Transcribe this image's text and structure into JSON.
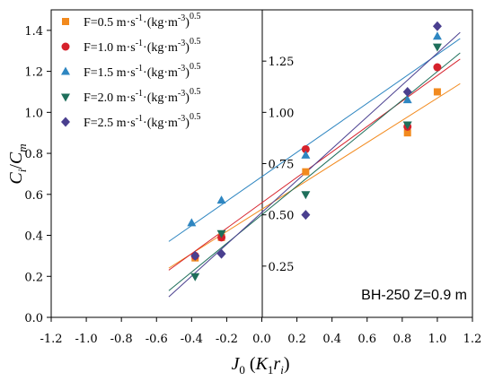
{
  "chart_data": {
    "type": "scatter",
    "xlabel": "J0 (K1 ri)",
    "ylabel": "Ci/Cm",
    "xlim": [
      -1.2,
      1.2
    ],
    "ylim": [
      0,
      1.5
    ],
    "inner_ylim": [
      0,
      1.5
    ],
    "x_ticks": [
      "-1.2",
      "-1.0",
      "-0.8",
      "-0.6",
      "-0.4",
      "-0.2",
      "0.0",
      "0.2",
      "0.4",
      "0.6",
      "0.8",
      "1.0",
      "1.2"
    ],
    "y_ticks": [
      "0.0",
      "0.2",
      "0.4",
      "0.6",
      "0.8",
      "1.0",
      "1.2",
      "1.4"
    ],
    "inner_y_ticks": [
      "0.25",
      "0.50",
      "0.75",
      "1.00",
      "1.25"
    ],
    "annotation": "BH-250  Z=0.9 m",
    "legend_position": "top-left",
    "grid": false,
    "series": [
      {
        "name": "F=0.5 m·s⁻¹·(kg·m⁻³)^0.5",
        "color": "#f28a1e",
        "marker": "square",
        "x": [
          -0.38,
          -0.23,
          0.25,
          0.83,
          1.0
        ],
        "y": [
          0.29,
          0.39,
          0.71,
          0.9,
          1.1
        ],
        "fit": [
          -0.53,
          0.24,
          1.13,
          1.14
        ]
      },
      {
        "name": "F=1.0 m·s⁻¹·(kg·m⁻³)^0.5",
        "color": "#d6212b",
        "marker": "circle",
        "x": [
          -0.38,
          -0.23,
          0.25,
          0.83,
          1.0
        ],
        "y": [
          0.3,
          0.39,
          0.82,
          0.93,
          1.22
        ],
        "fit": [
          -0.53,
          0.23,
          1.13,
          1.26
        ]
      },
      {
        "name": "F=1.5 m·s⁻¹·(kg·m⁻³)^0.5",
        "color": "#2e86c1",
        "marker": "triangle-up",
        "x": [
          -0.4,
          -0.23,
          0.25,
          0.83,
          1.0
        ],
        "y": [
          0.46,
          0.57,
          0.79,
          1.06,
          1.37
        ],
        "fit": [
          -0.53,
          0.37,
          1.13,
          1.36
        ]
      },
      {
        "name": "F=2.0 m·s⁻¹·(kg·m⁻³)^0.5",
        "color": "#1f6f5b",
        "marker": "triangle-down",
        "x": [
          -0.38,
          -0.23,
          0.25,
          0.83,
          1.0
        ],
        "y": [
          0.2,
          0.41,
          0.6,
          0.94,
          1.32
        ],
        "fit": [
          -0.53,
          0.13,
          1.13,
          1.29
        ]
      },
      {
        "name": "F=2.5 m·s⁻¹·(kg·m⁻³)^0.5",
        "color": "#4a3f8f",
        "marker": "diamond",
        "x": [
          -0.38,
          -0.23,
          0.25,
          0.83,
          1.0
        ],
        "y": [
          0.3,
          0.31,
          0.5,
          1.1,
          1.42
        ],
        "fit": [
          -0.53,
          0.1,
          1.13,
          1.39
        ]
      }
    ]
  }
}
